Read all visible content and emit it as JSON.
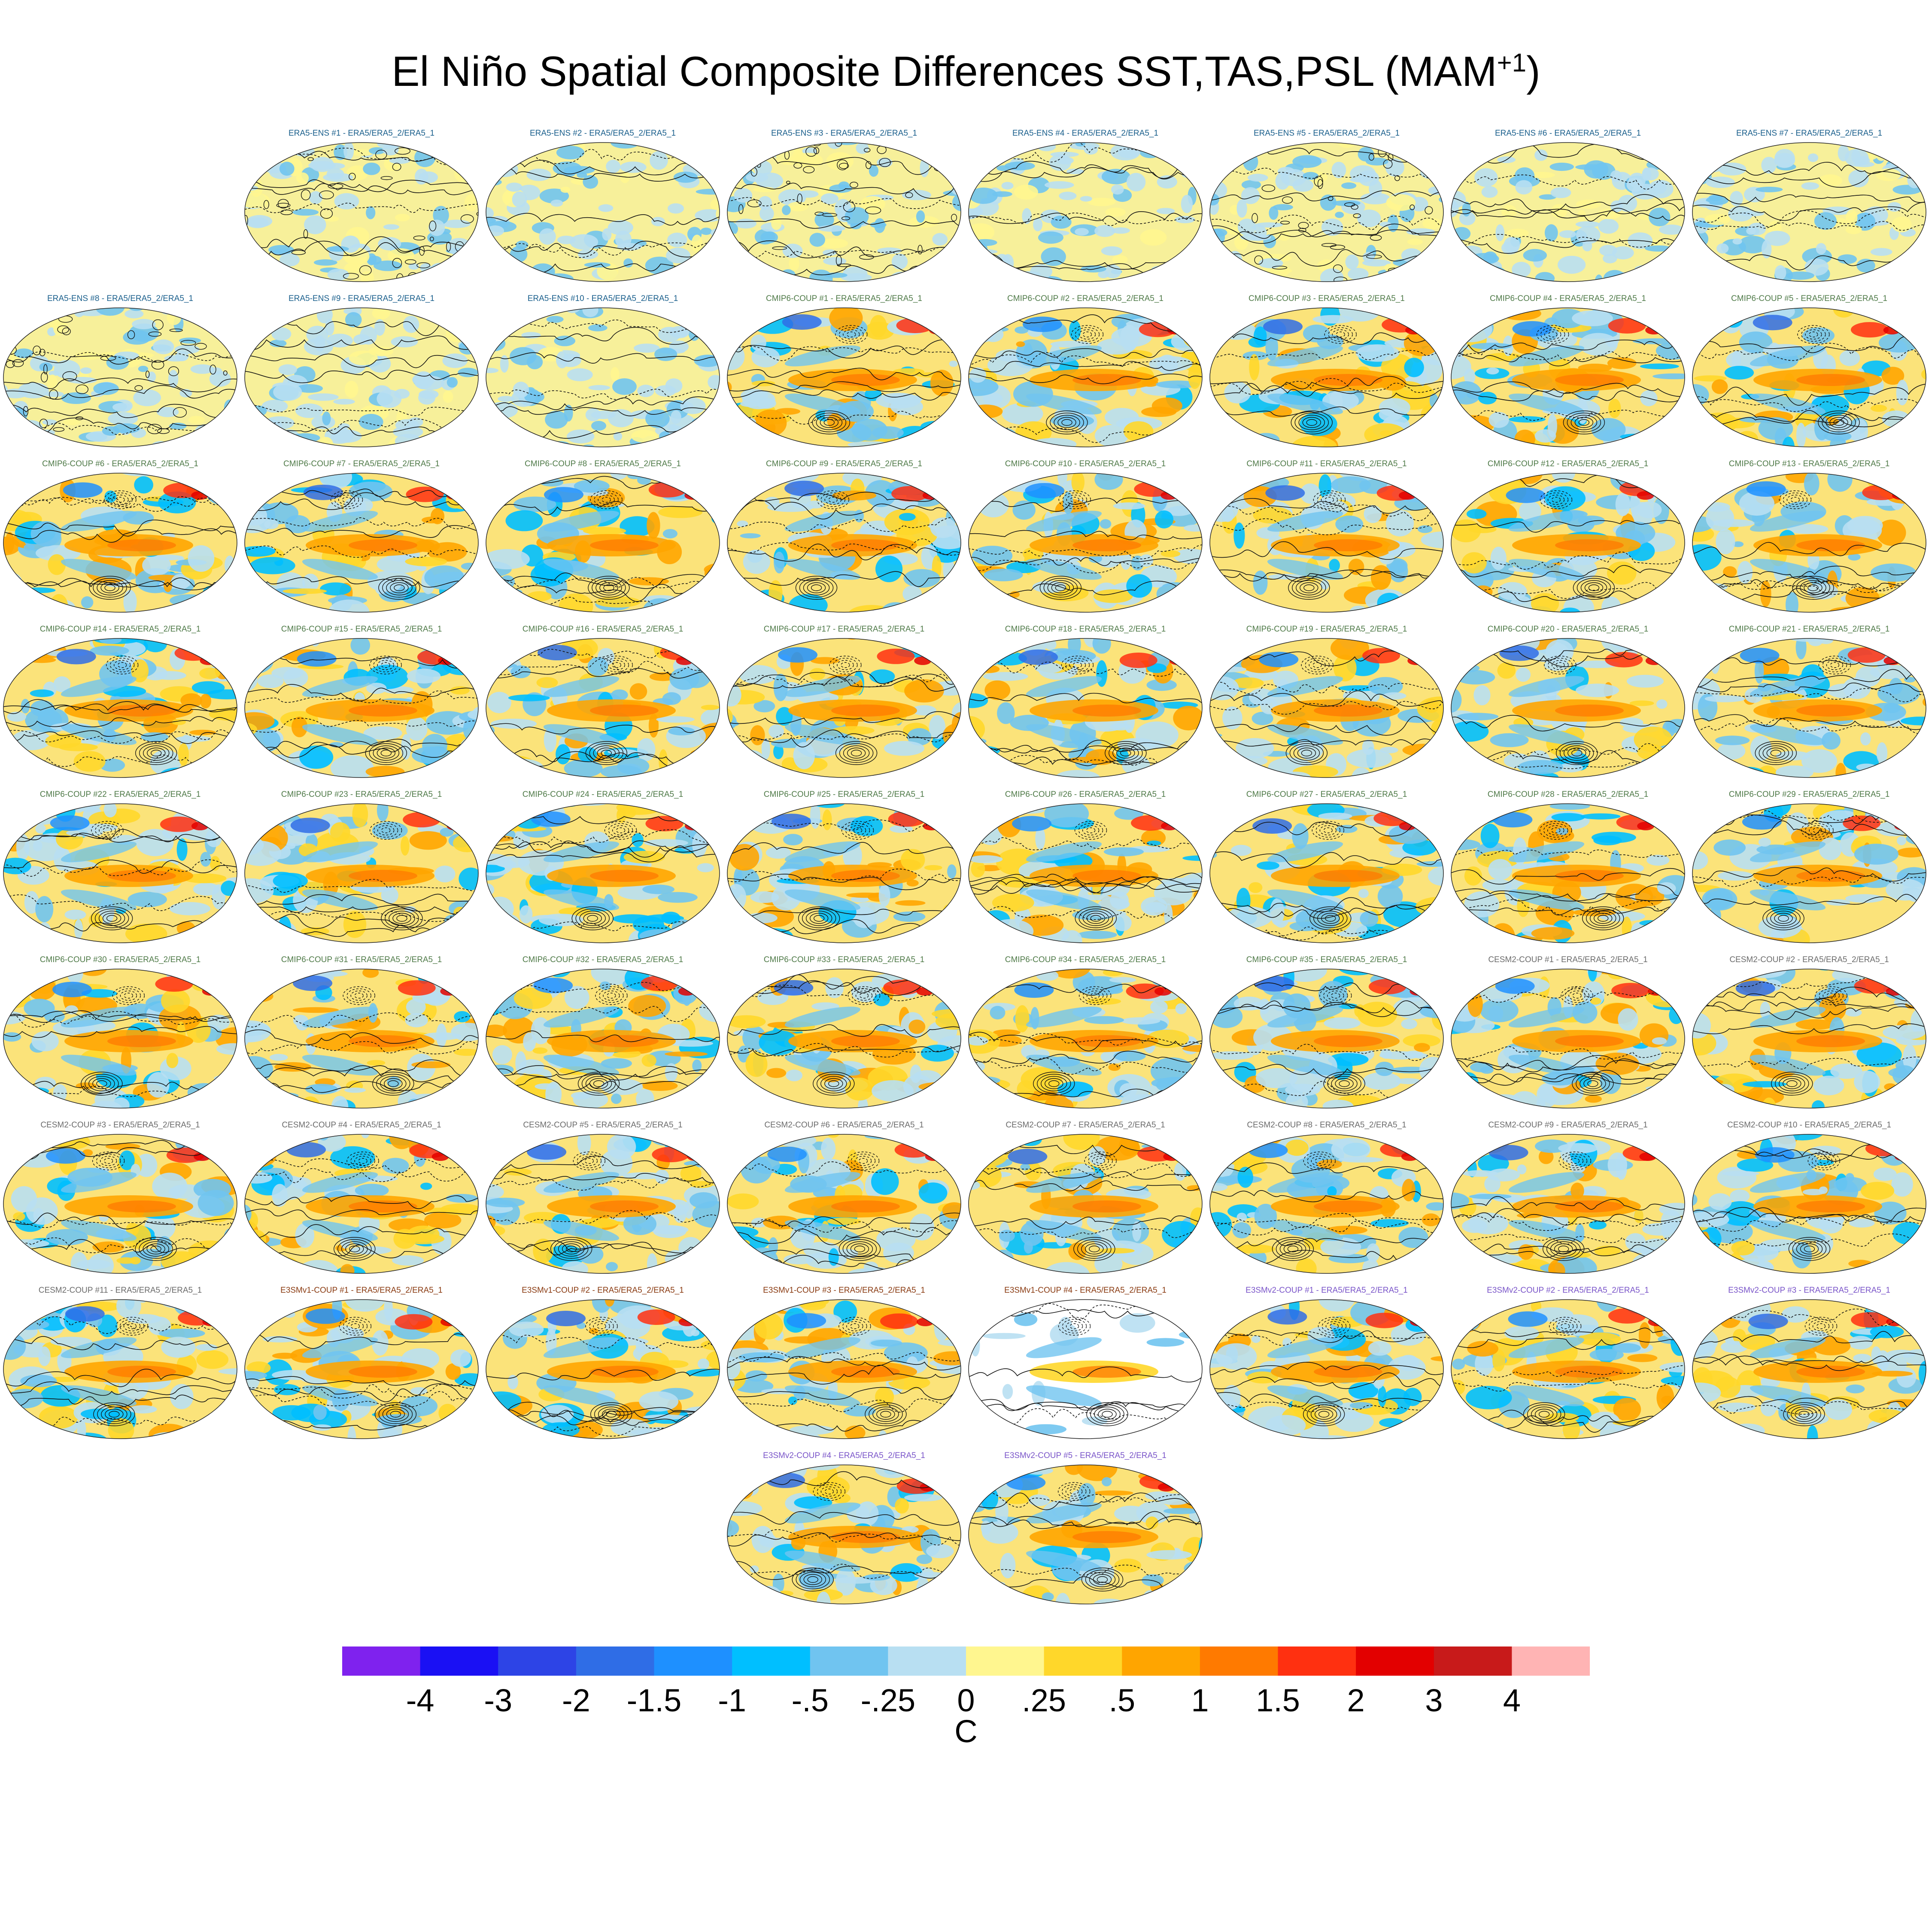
{
  "title": {
    "main": "El Niño Spatial Composite Differences SST,TAS,PSL (MAM",
    "sup": "+1",
    "close": ")"
  },
  "colors": {
    "ERA5-ENS": "#1a5f8c",
    "CMIP6-COUP": "#4f7a48",
    "CESM2-COUP": "#6b6b6b",
    "E3SMv1-COUP": "#8a3b12",
    "E3SMv2-COUP": "#7a55c9"
  },
  "chart_data": {
    "type": "heatmap",
    "title": "El Niño Spatial Composite Differences SST,TAS,PSL (MAM+1)",
    "colorbar": {
      "units": "C",
      "tick_labels": [
        "-4",
        "-3",
        "-2",
        "-1.5",
        "-1",
        "-.5",
        "-.25",
        "0",
        ".25",
        ".5",
        "1",
        "1.5",
        "2",
        "3",
        "4"
      ],
      "levels": [
        -4,
        -3,
        -2,
        -1.5,
        -1,
        -0.5,
        -0.25,
        0,
        0.25,
        0.5,
        1,
        1.5,
        2,
        3,
        4
      ],
      "colors": [
        "#7f22ee",
        "#1a10f4",
        "#2d44e6",
        "#2f6de6",
        "#1e90ff",
        "#00bfff",
        "#70c4f0",
        "#b8dff2",
        "#fff68f",
        "#ffd72a",
        "#ffa500",
        "#ff7a00",
        "#ff3010",
        "#e30000",
        "#c81a1a",
        "#ffb4b4"
      ]
    },
    "panels": [
      {
        "label": "ERA5-ENS   #1 - ERA5/ERA5_2/ERA5_1",
        "group": "ERA5-ENS"
      },
      {
        "label": "ERA5-ENS   #2 - ERA5/ERA5_2/ERA5_1",
        "group": "ERA5-ENS"
      },
      {
        "label": "ERA5-ENS   #3 - ERA5/ERA5_2/ERA5_1",
        "group": "ERA5-ENS"
      },
      {
        "label": "ERA5-ENS   #4 - ERA5/ERA5_2/ERA5_1",
        "group": "ERA5-ENS"
      },
      {
        "label": "ERA5-ENS   #5 - ERA5/ERA5_2/ERA5_1",
        "group": "ERA5-ENS"
      },
      {
        "label": "ERA5-ENS   #6 - ERA5/ERA5_2/ERA5_1",
        "group": "ERA5-ENS"
      },
      {
        "label": "ERA5-ENS   #7 - ERA5/ERA5_2/ERA5_1",
        "group": "ERA5-ENS"
      },
      {
        "label": "ERA5-ENS   #8 - ERA5/ERA5_2/ERA5_1",
        "group": "ERA5-ENS"
      },
      {
        "label": "ERA5-ENS   #9 - ERA5/ERA5_2/ERA5_1",
        "group": "ERA5-ENS"
      },
      {
        "label": "ERA5-ENS   #10 - ERA5/ERA5_2/ERA5_1",
        "group": "ERA5-ENS"
      },
      {
        "label": "CMIP6-COUP  #1 - ERA5/ERA5_2/ERA5_1",
        "group": "CMIP6-COUP"
      },
      {
        "label": "CMIP6-COUP  #2 - ERA5/ERA5_2/ERA5_1",
        "group": "CMIP6-COUP"
      },
      {
        "label": "CMIP6-COUP  #3 - ERA5/ERA5_2/ERA5_1",
        "group": "CMIP6-COUP"
      },
      {
        "label": "CMIP6-COUP  #4 - ERA5/ERA5_2/ERA5_1",
        "group": "CMIP6-COUP"
      },
      {
        "label": "CMIP6-COUP  #5 - ERA5/ERA5_2/ERA5_1",
        "group": "CMIP6-COUP"
      },
      {
        "label": "CMIP6-COUP  #6 - ERA5/ERA5_2/ERA5_1",
        "group": "CMIP6-COUP"
      },
      {
        "label": "CMIP6-COUP  #7 - ERA5/ERA5_2/ERA5_1",
        "group": "CMIP6-COUP"
      },
      {
        "label": "CMIP6-COUP  #8 - ERA5/ERA5_2/ERA5_1",
        "group": "CMIP6-COUP"
      },
      {
        "label": "CMIP6-COUP  #9 - ERA5/ERA5_2/ERA5_1",
        "group": "CMIP6-COUP"
      },
      {
        "label": "CMIP6-COUP  #10 - ERA5/ERA5_2/ERA5_1",
        "group": "CMIP6-COUP"
      },
      {
        "label": "CMIP6-COUP  #11 - ERA5/ERA5_2/ERA5_1",
        "group": "CMIP6-COUP"
      },
      {
        "label": "CMIP6-COUP  #12 - ERA5/ERA5_2/ERA5_1",
        "group": "CMIP6-COUP"
      },
      {
        "label": "CMIP6-COUP  #13 - ERA5/ERA5_2/ERA5_1",
        "group": "CMIP6-COUP"
      },
      {
        "label": "CMIP6-COUP  #14 - ERA5/ERA5_2/ERA5_1",
        "group": "CMIP6-COUP"
      },
      {
        "label": "CMIP6-COUP  #15 - ERA5/ERA5_2/ERA5_1",
        "group": "CMIP6-COUP"
      },
      {
        "label": "CMIP6-COUP  #16 - ERA5/ERA5_2/ERA5_1",
        "group": "CMIP6-COUP"
      },
      {
        "label": "CMIP6-COUP  #17 - ERA5/ERA5_2/ERA5_1",
        "group": "CMIP6-COUP"
      },
      {
        "label": "CMIP6-COUP  #18 - ERA5/ERA5_2/ERA5_1",
        "group": "CMIP6-COUP"
      },
      {
        "label": "CMIP6-COUP  #19 - ERA5/ERA5_2/ERA5_1",
        "group": "CMIP6-COUP"
      },
      {
        "label": "CMIP6-COUP  #20 - ERA5/ERA5_2/ERA5_1",
        "group": "CMIP6-COUP"
      },
      {
        "label": "CMIP6-COUP  #21 - ERA5/ERA5_2/ERA5_1",
        "group": "CMIP6-COUP"
      },
      {
        "label": "CMIP6-COUP  #22 - ERA5/ERA5_2/ERA5_1",
        "group": "CMIP6-COUP"
      },
      {
        "label": "CMIP6-COUP  #23 - ERA5/ERA5_2/ERA5_1",
        "group": "CMIP6-COUP"
      },
      {
        "label": "CMIP6-COUP  #24 - ERA5/ERA5_2/ERA5_1",
        "group": "CMIP6-COUP"
      },
      {
        "label": "CMIP6-COUP  #25 - ERA5/ERA5_2/ERA5_1",
        "group": "CMIP6-COUP"
      },
      {
        "label": "CMIP6-COUP  #26 - ERA5/ERA5_2/ERA5_1",
        "group": "CMIP6-COUP"
      },
      {
        "label": "CMIP6-COUP  #27 - ERA5/ERA5_2/ERA5_1",
        "group": "CMIP6-COUP"
      },
      {
        "label": "CMIP6-COUP  #28 - ERA5/ERA5_2/ERA5_1",
        "group": "CMIP6-COUP"
      },
      {
        "label": "CMIP6-COUP  #29 - ERA5/ERA5_2/ERA5_1",
        "group": "CMIP6-COUP"
      },
      {
        "label": "CMIP6-COUP  #30 - ERA5/ERA5_2/ERA5_1",
        "group": "CMIP6-COUP"
      },
      {
        "label": "CMIP6-COUP  #31 - ERA5/ERA5_2/ERA5_1",
        "group": "CMIP6-COUP"
      },
      {
        "label": "CMIP6-COUP  #32 - ERA5/ERA5_2/ERA5_1",
        "group": "CMIP6-COUP"
      },
      {
        "label": "CMIP6-COUP  #33 - ERA5/ERA5_2/ERA5_1",
        "group": "CMIP6-COUP"
      },
      {
        "label": "CMIP6-COUP  #34 - ERA5/ERA5_2/ERA5_1",
        "group": "CMIP6-COUP"
      },
      {
        "label": "CMIP6-COUP  #35 - ERA5/ERA5_2/ERA5_1",
        "group": "CMIP6-COUP"
      },
      {
        "label": "CESM2-COUP  #1 - ERA5/ERA5_2/ERA5_1",
        "group": "CESM2-COUP"
      },
      {
        "label": "CESM2-COUP  #2 - ERA5/ERA5_2/ERA5_1",
        "group": "CESM2-COUP"
      },
      {
        "label": "CESM2-COUP  #3 - ERA5/ERA5_2/ERA5_1",
        "group": "CESM2-COUP"
      },
      {
        "label": "CESM2-COUP  #4 - ERA5/ERA5_2/ERA5_1",
        "group": "CESM2-COUP"
      },
      {
        "label": "CESM2-COUP  #5 - ERA5/ERA5_2/ERA5_1",
        "group": "CESM2-COUP"
      },
      {
        "label": "CESM2-COUP  #6 - ERA5/ERA5_2/ERA5_1",
        "group": "CESM2-COUP"
      },
      {
        "label": "CESM2-COUP  #7 - ERA5/ERA5_2/ERA5_1",
        "group": "CESM2-COUP"
      },
      {
        "label": "CESM2-COUP  #8 - ERA5/ERA5_2/ERA5_1",
        "group": "CESM2-COUP"
      },
      {
        "label": "CESM2-COUP  #9 - ERA5/ERA5_2/ERA5_1",
        "group": "CESM2-COUP"
      },
      {
        "label": "CESM2-COUP  #10 - ERA5/ERA5_2/ERA5_1",
        "group": "CESM2-COUP"
      },
      {
        "label": "CESM2-COUP  #11 - ERA5/ERA5_2/ERA5_1",
        "group": "CESM2-COUP"
      },
      {
        "label": "E3SMv1-COUP #1 - ERA5/ERA5_2/ERA5_1",
        "group": "E3SMv1-COUP"
      },
      {
        "label": "E3SMv1-COUP #2 - ERA5/ERA5_2/ERA5_1",
        "group": "E3SMv1-COUP"
      },
      {
        "label": "E3SMv1-COUP #3 - ERA5/ERA5_2/ERA5_1",
        "group": "E3SMv1-COUP"
      },
      {
        "label": "E3SMv1-COUP #4 - ERA5/ERA5_2/ERA5_1",
        "group": "E3SMv1-COUP",
        "style": "masked"
      },
      {
        "label": "E3SMv2-COUP #1 - ERA5/ERA5_2/ERA5_1",
        "group": "E3SMv2-COUP"
      },
      {
        "label": "E3SMv2-COUP #2 - ERA5/ERA5_2/ERA5_1",
        "group": "E3SMv2-COUP"
      },
      {
        "label": "E3SMv2-COUP #3 - ERA5/ERA5_2/ERA5_1",
        "group": "E3SMv2-COUP"
      },
      {
        "label": "E3SMv2-COUP #4 - ERA5/ERA5_2/ERA5_1",
        "group": "E3SMv2-COUP"
      },
      {
        "label": "E3SMv2-COUP #5 - ERA5/ERA5_2/ERA5_1",
        "group": "E3SMv2-COUP"
      }
    ]
  }
}
